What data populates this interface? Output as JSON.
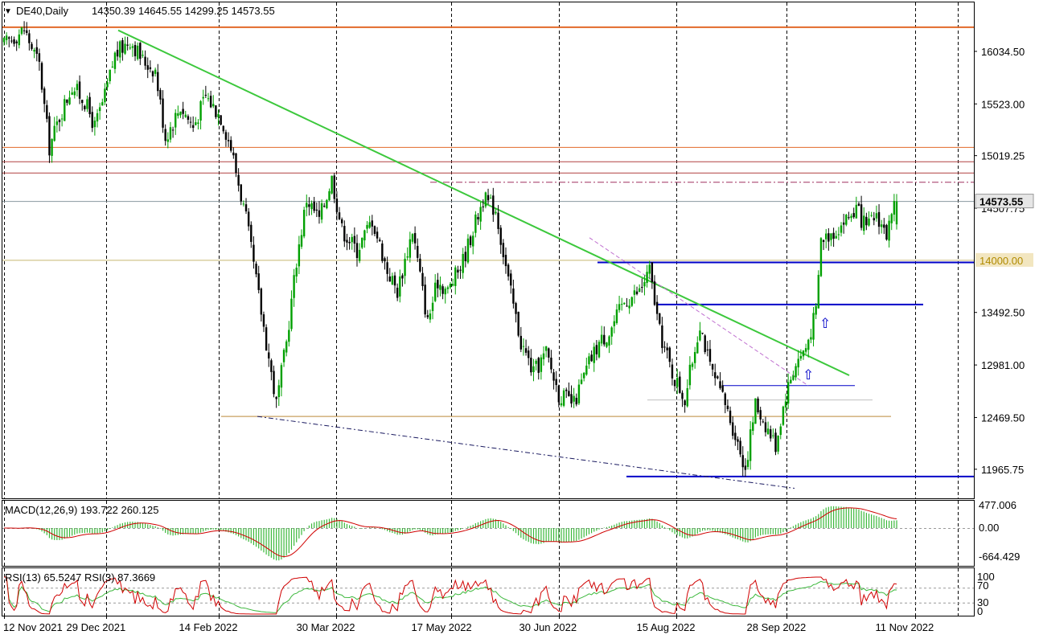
{
  "header": {
    "symbol": "DE40,Daily",
    "ohlc": "14350.39 14645.55 14299.25 14573.55"
  },
  "colors": {
    "bull": "#00a000",
    "bear": "#000000",
    "trendline": "#3cc83c",
    "resistance_orange": "#e2692a",
    "support_blue": "#0000c8",
    "macd_signal": "#d00000",
    "macd_hist": "#3cb83c",
    "rsi_main": "#d00000",
    "rsi_signal": "#3cb83c",
    "price_label_bg": "#eeeeee",
    "level_label_bg": "#f2e6c0"
  },
  "price_panel": {
    "price_labels": [
      "16034.50",
      "15523.00",
      "15019.25",
      "14507.75",
      "12981.00",
      "13492.50",
      "12469.50",
      "11965.75"
    ],
    "current_price": "14573.55",
    "level_label": "14000.00",
    "arrows": [
      "up-arrow",
      "up-arrow"
    ]
  },
  "macd_panel": {
    "title": "MACD(12,26,9) 193.722 260.125",
    "axis_labels": [
      "477.006",
      "0.00",
      "-664.429"
    ]
  },
  "rsi_panel": {
    "title": "RSI(13) 65.5247  RSI(3) 87.3669",
    "axis_labels": [
      "100",
      "70",
      "30",
      "0"
    ]
  },
  "chart_data": {
    "type": "candlestick",
    "x_labels": [
      "12 Nov 2021",
      "29 Dec 2021",
      "14 Feb 2022",
      "30 Mar 2022",
      "17 May 2022",
      "30 Jun 2022",
      "15 Aug 2022",
      "28 Sep 2022",
      "11 Nov 2022"
    ],
    "y_range": [
      11800,
      16300
    ],
    "anchors": [
      [
        0,
        16100
      ],
      [
        8,
        16250
      ],
      [
        14,
        15900
      ],
      [
        18,
        15100
      ],
      [
        22,
        15400
      ],
      [
        27,
        15700
      ],
      [
        32,
        15550
      ],
      [
        36,
        15300
      ],
      [
        40,
        15600
      ],
      [
        44,
        16000
      ],
      [
        50,
        16150
      ],
      [
        55,
        15950
      ],
      [
        60,
        15850
      ],
      [
        64,
        15200
      ],
      [
        70,
        15500
      ],
      [
        75,
        15300
      ],
      [
        80,
        15600
      ],
      [
        86,
        15400
      ],
      [
        90,
        15100
      ],
      [
        96,
        14400
      ],
      [
        102,
        13500
      ],
      [
        108,
        12600
      ],
      [
        112,
        13200
      ],
      [
        116,
        14000
      ],
      [
        120,
        14600
      ],
      [
        125,
        14400
      ],
      [
        130,
        14800
      ],
      [
        134,
        14300
      ],
      [
        140,
        14100
      ],
      [
        146,
        14400
      ],
      [
        152,
        13900
      ],
      [
        156,
        13700
      ],
      [
        162,
        14300
      ],
      [
        168,
        13400
      ],
      [
        172,
        13800
      ],
      [
        176,
        13700
      ],
      [
        182,
        14000
      ],
      [
        186,
        14300
      ],
      [
        190,
        14600
      ],
      [
        195,
        14500
      ],
      [
        200,
        13800
      ],
      [
        205,
        13200
      ],
      [
        210,
        12900
      ],
      [
        215,
        13100
      ],
      [
        220,
        12700
      ],
      [
        226,
        12600
      ],
      [
        232,
        13000
      ],
      [
        236,
        13200
      ],
      [
        240,
        13300
      ],
      [
        246,
        13600
      ],
      [
        252,
        13700
      ],
      [
        256,
        13900
      ],
      [
        260,
        13300
      ],
      [
        265,
        12900
      ],
      [
        270,
        12650
      ],
      [
        276,
        13400
      ],
      [
        280,
        12950
      ],
      [
        286,
        12600
      ],
      [
        290,
        12300
      ],
      [
        294,
        11980
      ],
      [
        298,
        12600
      ],
      [
        302,
        12400
      ],
      [
        306,
        12200
      ],
      [
        310,
        12700
      ],
      [
        314,
        13000
      ],
      [
        318,
        13150
      ],
      [
        322,
        13500
      ],
      [
        324,
        14200
      ],
      [
        330,
        14300
      ],
      [
        338,
        14500
      ],
      [
        342,
        14300
      ],
      [
        346,
        14450
      ],
      [
        350,
        14250
      ],
      [
        354,
        14573.55
      ]
    ],
    "levels": [
      {
        "price": 16270,
        "label": "resistance"
      },
      {
        "price": 15100,
        "label": "resistance"
      },
      {
        "price": 14960,
        "label": "resistance"
      },
      {
        "price": 14850,
        "label": "resistance"
      },
      {
        "price": 14760,
        "label": "dash-dot"
      },
      {
        "price": 14000,
        "label": "support"
      },
      {
        "price": 12480,
        "label": "support"
      }
    ],
    "macd": {
      "value": 193.722,
      "signal": 260.125,
      "range": [
        -664.429,
        477.006
      ]
    },
    "rsi": {
      "rsi13": 65.5247,
      "rsi3": 87.3669,
      "range": [
        0,
        100
      ]
    }
  }
}
